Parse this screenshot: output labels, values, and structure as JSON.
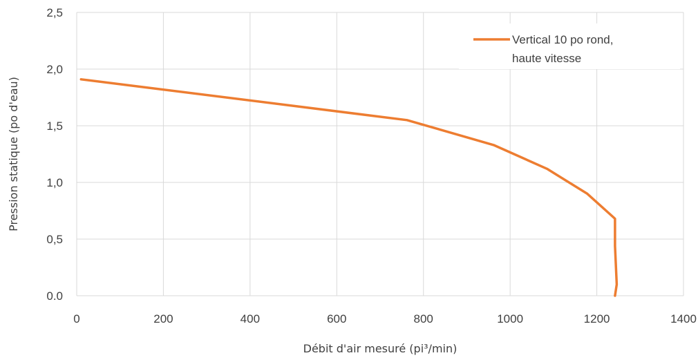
{
  "chart_data": {
    "type": "line",
    "xlabel": "Débit d'air mesuré (pi³/min)",
    "ylabel": "Pression statique (po d'eau)",
    "xlim": [
      0,
      1400
    ],
    "ylim": [
      0,
      2.5
    ],
    "x_ticks": [
      0,
      200,
      400,
      600,
      800,
      1000,
      1200,
      1400
    ],
    "x_tick_labels": [
      "0",
      "200",
      "400",
      "600",
      "800",
      "1000",
      "1200",
      "1400"
    ],
    "y_ticks": [
      0,
      0.5,
      1,
      1.5,
      2,
      2.5
    ],
    "y_tick_labels": [
      "0.0",
      "0,5",
      "1,0",
      "1,5",
      "2,0",
      "2,5"
    ],
    "grid": true,
    "legend_position": "top-right",
    "series": [
      {
        "name_lines": [
          "Vertical 10 po rond,",
          "haute vitesse"
        ],
        "color": "#ED7D31",
        "points": [
          {
            "x": 10,
            "y": 1.91
          },
          {
            "x": 762,
            "y": 1.55
          },
          {
            "x": 962,
            "y": 1.33
          },
          {
            "x": 1085,
            "y": 1.12
          },
          {
            "x": 1178,
            "y": 0.9
          },
          {
            "x": 1242,
            "y": 0.68
          },
          {
            "x": 1242,
            "y": 0.44
          },
          {
            "x": 1246,
            "y": 0.1
          },
          {
            "x": 1242,
            "y": 0.0
          }
        ]
      }
    ]
  }
}
